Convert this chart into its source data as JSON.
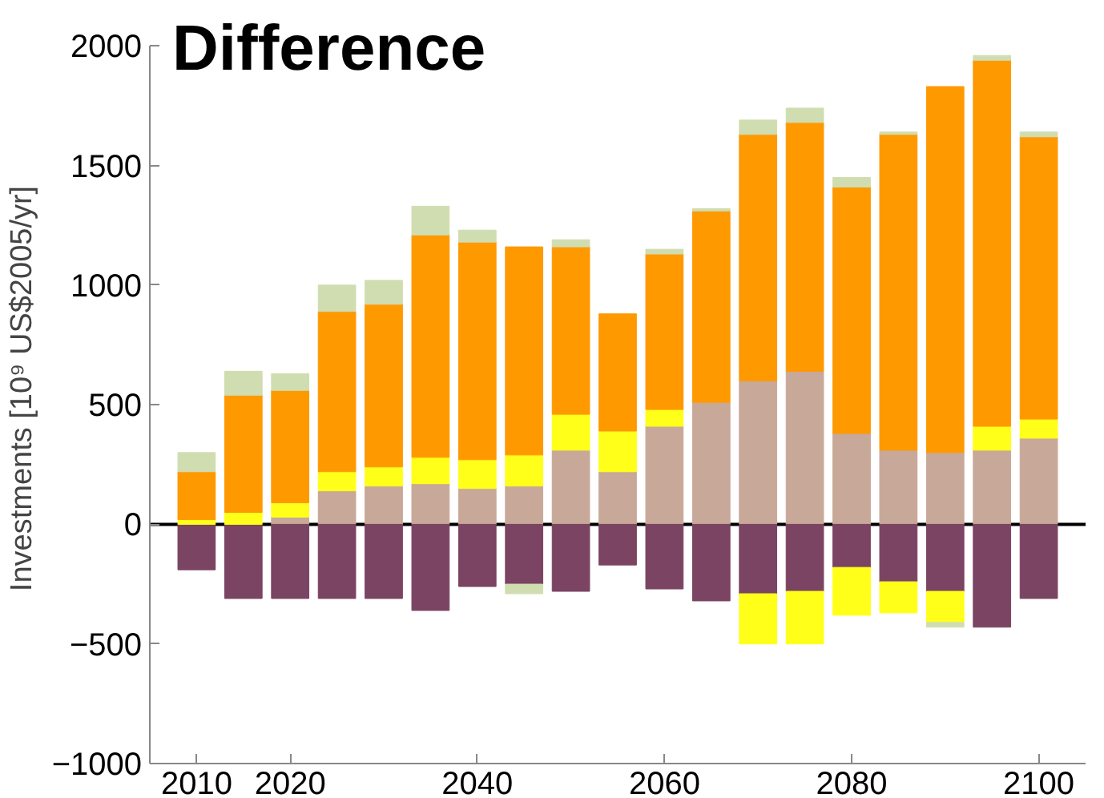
{
  "chart_data": {
    "type": "bar",
    "title": "Difference",
    "ylabel": "Investments [10⁹ US$2005/yr]",
    "stacked": true,
    "x": [
      2010,
      2015,
      2020,
      2025,
      2030,
      2035,
      2040,
      2045,
      2050,
      2055,
      2060,
      2065,
      2070,
      2075,
      2080,
      2085,
      2090,
      2095,
      2100
    ],
    "series": [
      {
        "color": "#c8a898",
        "values": [
          null,
          null,
          30,
          140,
          160,
          170,
          150,
          160,
          310,
          220,
          410,
          510,
          600,
          640,
          380,
          310,
          300,
          310,
          360
        ]
      },
      {
        "color": "#7a4462",
        "values": [
          -190,
          -310,
          -310,
          -310,
          -310,
          -360,
          -260,
          -250,
          -280,
          -170,
          -270,
          -320,
          -290,
          -280,
          -180,
          -240,
          -280,
          -430,
          -310
        ]
      },
      {
        "color": "#ffff1a",
        "values": [
          20,
          50,
          60,
          80,
          80,
          110,
          120,
          130,
          150,
          170,
          70,
          null,
          -210,
          -220,
          -200,
          -130,
          -130,
          100,
          80
        ]
      },
      {
        "color": "#ff9900",
        "values": [
          200,
          490,
          470,
          670,
          680,
          930,
          910,
          870,
          700,
          490,
          650,
          800,
          1030,
          1040,
          1030,
          1320,
          1530,
          1530,
          1180
        ]
      },
      {
        "color": "#d0ddb0",
        "values": [
          80,
          100,
          70,
          110,
          100,
          120,
          50,
          -40,
          30,
          null,
          20,
          10,
          60,
          60,
          40,
          10,
          -20,
          20,
          20
        ]
      }
    ],
    "xlim": [
      2005,
      2105
    ],
    "xticks": [
      2010,
      2020,
      2040,
      2060,
      2080,
      2100
    ],
    "ylim": [
      -1000,
      2000
    ],
    "yticks": [
      -1000,
      -500,
      0,
      500,
      1000,
      1500,
      2000
    ],
    "ref_lines": [
      {
        "axis": "y",
        "value": 0,
        "color": "#000000"
      }
    ],
    "grid": false
  }
}
